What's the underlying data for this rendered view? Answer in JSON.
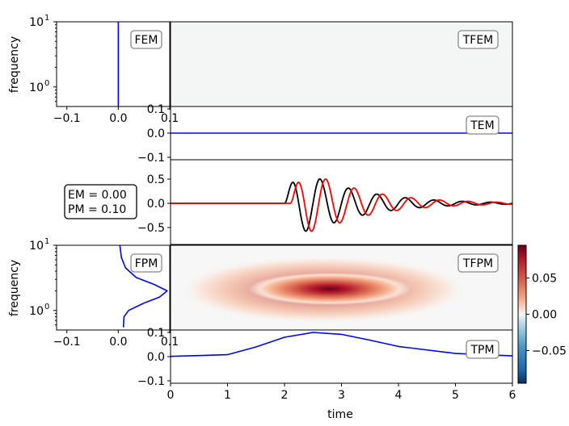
{
  "chart_data": [
    {
      "panel": "FEM",
      "type": "line",
      "badge": "FEM",
      "ylabel": "frequency",
      "xlim": [
        -0.12,
        0.1
      ],
      "ylim_log10": [
        -0.3,
        1.0
      ],
      "yscale": "log",
      "xticks": [
        -0.1,
        0.0,
        0.1
      ],
      "xtick_labels": [
        "−0.1",
        "0.0",
        "0.1"
      ],
      "yticks": [
        {
          "value": 1,
          "label": "10",
          "sup": "0"
        },
        {
          "value": 10,
          "label": "10",
          "sup": "1"
        }
      ],
      "color": "#0000ff",
      "series": [
        {
          "x": [
            0,
            0
          ],
          "y": [
            0.5,
            10
          ]
        }
      ]
    },
    {
      "panel": "TFEM",
      "type": "heatmap",
      "badge": "TFEM",
      "note_values": "near-zero everywhere",
      "fill": "#f4f6f5"
    },
    {
      "panel": "TEM",
      "type": "line",
      "badge": "TEM",
      "xlim": [
        0,
        6
      ],
      "ylim": [
        -0.11,
        0.11
      ],
      "yticks": [
        0.1,
        0.0,
        -0.1
      ],
      "ytick_labels": [
        "0.1",
        "0.0",
        "−0.1"
      ],
      "color": "#0000ff",
      "series": [
        {
          "x": [
            0,
            6
          ],
          "y": [
            0,
            0
          ]
        }
      ]
    },
    {
      "panel": "signals",
      "type": "line",
      "badge_lines": [
        "EM = 0.00",
        "PM = 0.10"
      ],
      "xlim": [
        0,
        6
      ],
      "ylim": [
        -0.85,
        0.9
      ],
      "yticks": [
        0.5,
        0.0,
        -0.5
      ],
      "ytick_labels": [
        "0.5",
        "0.0",
        "−0.5"
      ],
      "model": {
        "t0": 2.0,
        "frequency": 2.0,
        "decay": 0.9,
        "amplitude": 0.98,
        "rise": 0.55
      },
      "series": [
        {
          "color": "#000000",
          "phase_shift": 0.0
        },
        {
          "color": "#ff0000",
          "phase_shift": 0.1
        }
      ]
    },
    {
      "panel": "FPM",
      "type": "line",
      "badge": "FPM",
      "ylabel": "frequency",
      "xlim": [
        -0.12,
        0.1
      ],
      "ylim_log10": [
        -0.3,
        1.0
      ],
      "yscale": "log",
      "xticks": [
        -0.1,
        0.0,
        0.1
      ],
      "xtick_labels": [
        "−0.1",
        "0.0",
        "0.1"
      ],
      "yticks": [
        {
          "value": 1,
          "label": "10",
          "sup": "0"
        },
        {
          "value": 10,
          "label": "10",
          "sup": "1"
        }
      ],
      "color": "#0000ff",
      "series": [
        {
          "f": 0.55,
          "x": 0.01
        },
        {
          "f": 0.8,
          "x": 0.011
        },
        {
          "f": 1.0,
          "x": 0.02
        },
        {
          "f": 1.3,
          "x": 0.05
        },
        {
          "f": 1.6,
          "x": 0.08
        },
        {
          "f": 2.0,
          "x": 0.095
        },
        {
          "f": 2.5,
          "x": 0.07
        },
        {
          "f": 3.2,
          "x": 0.035
        },
        {
          "f": 4.5,
          "x": 0.014
        },
        {
          "f": 6.5,
          "x": 0.006
        },
        {
          "f": 10,
          "x": 0.003
        }
      ]
    },
    {
      "panel": "TFPM",
      "type": "heatmap",
      "badge": "TFPM",
      "peak": {
        "t": 2.6,
        "f": 2.0,
        "value": 0.095
      },
      "colormap": "RdBu_r",
      "colorbar": {
        "vmin": -0.095,
        "vmax": 0.095,
        "ticks": [
          0.05,
          0.0,
          -0.05
        ],
        "tick_labels": [
          "0.05",
          "0.00",
          "−0.05"
        ]
      }
    },
    {
      "panel": "TPM",
      "type": "line",
      "badge": "TPM",
      "xlabel": "time",
      "xlim": [
        0,
        6
      ],
      "ylim": [
        -0.11,
        0.11
      ],
      "xticks": [
        0,
        1,
        2,
        3,
        4,
        5,
        6
      ],
      "xtick_labels": [
        "0",
        "1",
        "2",
        "3",
        "4",
        "5",
        "6"
      ],
      "yticks": [
        0.1,
        0.0,
        -0.1
      ],
      "ytick_labels": [
        "0.1",
        "0.0",
        "−0.1"
      ],
      "color": "#0000ff",
      "series": [
        {
          "x": [
            0,
            1,
            1.5,
            2.0,
            2.5,
            3.0,
            3.5,
            4.0,
            5.0,
            6.0
          ],
          "y": [
            0.001,
            0.008,
            0.04,
            0.08,
            0.1,
            0.092,
            0.068,
            0.042,
            0.013,
            0.003
          ]
        }
      ]
    }
  ]
}
